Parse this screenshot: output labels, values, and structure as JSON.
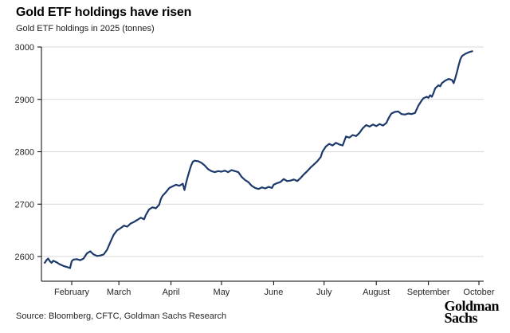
{
  "header": {
    "title": "Gold ETF holdings have risen",
    "subtitle": "Gold ETF holdings in 2025 (tonnes)"
  },
  "footer": {
    "source": "Source: Bloomberg, CFTC, Goldman Sachs Research",
    "logo_line1": "Goldman",
    "logo_line2": "Sachs"
  },
  "chart_data": {
    "type": "line",
    "title": "Gold ETF holdings have risen",
    "subtitle": "Gold ETF holdings in 2025 (tonnes)",
    "xlabel": "",
    "ylabel": "",
    "grid": "horizontal",
    "legend": "none",
    "line_color": "#1b3a6b",
    "grid_color": "#d9d9d9",
    "axis_color": "#000000",
    "tick_label_color": "#262626",
    "y_ticks": [
      2600,
      2700,
      2800,
      2900,
      3000
    ],
    "ylim": [
      2554,
      3000
    ],
    "x_unit": "day_of_year_2025",
    "x_domain_days": [
      14,
      277
    ],
    "x_ticks": [
      {
        "label": "February",
        "day": 32
      },
      {
        "label": "March",
        "day": 60
      },
      {
        "label": "April",
        "day": 91
      },
      {
        "label": "May",
        "day": 121
      },
      {
        "label": "June",
        "day": 152
      },
      {
        "label": "July",
        "day": 182
      },
      {
        "label": "August",
        "day": 213
      },
      {
        "label": "September",
        "day": 244
      },
      {
        "label": "October",
        "day": 274
      }
    ],
    "series": [
      {
        "name": "Gold ETF holdings (tonnes)",
        "points": [
          [
            16,
            2588
          ],
          [
            17,
            2593
          ],
          [
            18,
            2596
          ],
          [
            19,
            2591
          ],
          [
            20,
            2588
          ],
          [
            21,
            2592
          ],
          [
            23,
            2589
          ],
          [
            25,
            2585
          ],
          [
            27,
            2582
          ],
          [
            29,
            2580
          ],
          [
            31,
            2578
          ],
          [
            32,
            2591
          ],
          [
            33,
            2594
          ],
          [
            35,
            2595
          ],
          [
            37,
            2593
          ],
          [
            39,
            2596
          ],
          [
            41,
            2606
          ],
          [
            43,
            2610
          ],
          [
            45,
            2604
          ],
          [
            47,
            2601
          ],
          [
            49,
            2602
          ],
          [
            51,
            2604
          ],
          [
            53,
            2613
          ],
          [
            55,
            2628
          ],
          [
            57,
            2642
          ],
          [
            59,
            2650
          ],
          [
            61,
            2654
          ],
          [
            63,
            2659
          ],
          [
            65,
            2657
          ],
          [
            67,
            2663
          ],
          [
            69,
            2666
          ],
          [
            71,
            2670
          ],
          [
            73,
            2674
          ],
          [
            75,
            2671
          ],
          [
            76,
            2679
          ],
          [
            78,
            2690
          ],
          [
            80,
            2694
          ],
          [
            82,
            2692
          ],
          [
            84,
            2699
          ],
          [
            85,
            2710
          ],
          [
            86,
            2716
          ],
          [
            88,
            2723
          ],
          [
            90,
            2731
          ],
          [
            92,
            2734
          ],
          [
            94,
            2737
          ],
          [
            96,
            2735
          ],
          [
            98,
            2739
          ],
          [
            99,
            2727
          ],
          [
            100,
            2741
          ],
          [
            101,
            2753
          ],
          [
            102,
            2764
          ],
          [
            103,
            2774
          ],
          [
            104,
            2781
          ],
          [
            105,
            2783
          ],
          [
            107,
            2782
          ],
          [
            109,
            2779
          ],
          [
            111,
            2774
          ],
          [
            113,
            2767
          ],
          [
            115,
            2763
          ],
          [
            117,
            2761
          ],
          [
            119,
            2763
          ],
          [
            121,
            2762
          ],
          [
            123,
            2764
          ],
          [
            125,
            2761
          ],
          [
            127,
            2765
          ],
          [
            129,
            2763
          ],
          [
            131,
            2761
          ],
          [
            133,
            2752
          ],
          [
            135,
            2746
          ],
          [
            137,
            2742
          ],
          [
            139,
            2735
          ],
          [
            141,
            2731
          ],
          [
            143,
            2729
          ],
          [
            145,
            2732
          ],
          [
            147,
            2730
          ],
          [
            149,
            2733
          ],
          [
            151,
            2731
          ],
          [
            152,
            2737
          ],
          [
            154,
            2740
          ],
          [
            156,
            2742
          ],
          [
            158,
            2748
          ],
          [
            160,
            2744
          ],
          [
            162,
            2745
          ],
          [
            164,
            2747
          ],
          [
            166,
            2744
          ],
          [
            168,
            2750
          ],
          [
            170,
            2757
          ],
          [
            172,
            2763
          ],
          [
            174,
            2770
          ],
          [
            176,
            2776
          ],
          [
            178,
            2782
          ],
          [
            180,
            2790
          ],
          [
            181,
            2800
          ],
          [
            183,
            2810
          ],
          [
            185,
            2815
          ],
          [
            187,
            2812
          ],
          [
            189,
            2817
          ],
          [
            191,
            2814
          ],
          [
            193,
            2812
          ],
          [
            195,
            2829
          ],
          [
            197,
            2827
          ],
          [
            199,
            2832
          ],
          [
            201,
            2830
          ],
          [
            203,
            2836
          ],
          [
            205,
            2845
          ],
          [
            207,
            2851
          ],
          [
            209,
            2848
          ],
          [
            211,
            2852
          ],
          [
            213,
            2849
          ],
          [
            215,
            2853
          ],
          [
            217,
            2850
          ],
          [
            219,
            2855
          ],
          [
            220,
            2862
          ],
          [
            221,
            2868
          ],
          [
            222,
            2873
          ],
          [
            224,
            2876
          ],
          [
            226,
            2877
          ],
          [
            228,
            2872
          ],
          [
            230,
            2871
          ],
          [
            232,
            2873
          ],
          [
            234,
            2872
          ],
          [
            236,
            2874
          ],
          [
            238,
            2888
          ],
          [
            240,
            2898
          ],
          [
            241,
            2902
          ],
          [
            243,
            2905
          ],
          [
            244,
            2903
          ],
          [
            245,
            2908
          ],
          [
            246,
            2905
          ],
          [
            247,
            2912
          ],
          [
            248,
            2921
          ],
          [
            250,
            2927
          ],
          [
            251,
            2925
          ],
          [
            252,
            2931
          ],
          [
            254,
            2936
          ],
          [
            256,
            2939
          ],
          [
            258,
            2937
          ],
          [
            259,
            2931
          ],
          [
            260,
            2941
          ],
          [
            261,
            2953
          ],
          [
            262,
            2966
          ],
          [
            263,
            2977
          ],
          [
            264,
            2983
          ],
          [
            266,
            2987
          ],
          [
            268,
            2990
          ],
          [
            270,
            2992
          ]
        ]
      }
    ]
  }
}
